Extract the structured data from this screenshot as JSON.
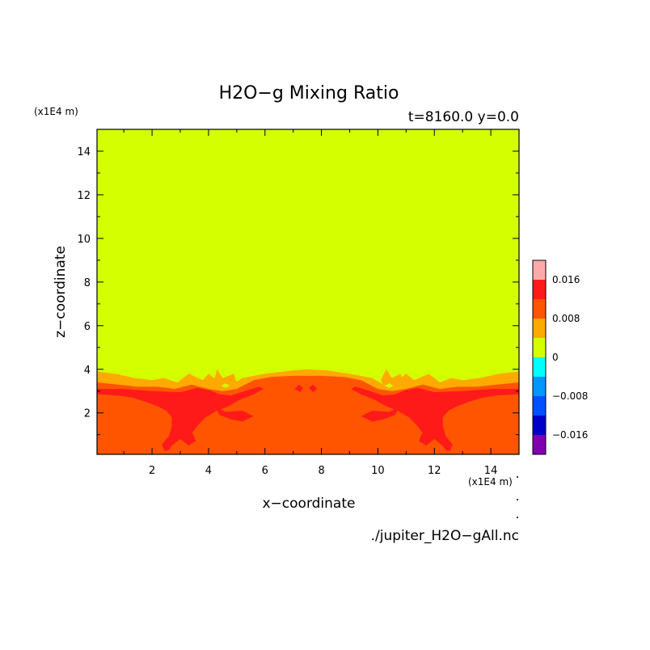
{
  "chart_data": {
    "type": "heatmap",
    "title": "H2O−g Mixing Ratio",
    "subtitle": "t=8160.0  y=0.0",
    "xlabel": "x−coordinate",
    "ylabel": "z−coordinate",
    "x_unit": "(x1E4 m)",
    "y_unit": "(x1E4 m)",
    "xlim": [
      0.05,
      15.0
    ],
    "ylim": [
      0.1,
      15.0
    ],
    "x_ticks": [
      2,
      4,
      6,
      8,
      10,
      12,
      14
    ],
    "y_ticks": [
      2,
      4,
      6,
      8,
      10,
      12,
      14
    ],
    "x_tick_labels": [
      "2",
      "4",
      "6",
      "8",
      "10",
      "12",
      "14"
    ],
    "y_tick_labels": [
      "2",
      "4",
      "6",
      "8",
      "10",
      "12",
      "14"
    ],
    "colorbar": {
      "levels": [
        -0.02,
        -0.016,
        -0.012,
        -0.008,
        -0.004,
        0,
        0.004,
        0.008,
        0.012,
        0.016,
        0.02
      ],
      "colors": [
        "#8000b0",
        "#0000c8",
        "#0050ff",
        "#0096ff",
        "#00ffff",
        "#d4ff00",
        "#ffaa00",
        "#ff5500",
        "#ff1a1a",
        "#ffaaaa"
      ],
      "tick_labels": [
        {
          "value": 0.016,
          "label": "0.016"
        },
        {
          "value": 0.008,
          "label": "0.008"
        },
        {
          "value": 0,
          "label": "0"
        },
        {
          "value": -0.008,
          "label": "−0.008"
        },
        {
          "value": -0.016,
          "label": "−0.016"
        }
      ]
    },
    "background_value": 0.002,
    "regions": [
      {
        "name": "moist-upper-band",
        "value": 0.006,
        "points": [
          [
            0.05,
            3.9
          ],
          [
            0.7,
            3.8
          ],
          [
            1.4,
            3.6
          ],
          [
            2.0,
            3.5
          ],
          [
            2.4,
            3.6
          ],
          [
            2.9,
            3.4
          ],
          [
            3.3,
            3.8
          ],
          [
            3.8,
            3.5
          ],
          [
            4.0,
            3.8
          ],
          [
            4.4,
            3.4
          ],
          [
            4.8,
            3.3
          ],
          [
            5.2,
            3.6
          ],
          [
            6.0,
            3.8
          ],
          [
            7.0,
            3.95
          ],
          [
            7.5,
            4.0
          ],
          [
            8.2,
            3.95
          ],
          [
            9.0,
            3.8
          ],
          [
            9.8,
            3.6
          ],
          [
            10.2,
            3.3
          ],
          [
            10.6,
            3.4
          ],
          [
            11.0,
            3.8
          ],
          [
            11.3,
            3.5
          ],
          [
            11.8,
            3.8
          ],
          [
            12.2,
            3.4
          ],
          [
            12.6,
            3.6
          ],
          [
            13.0,
            3.5
          ],
          [
            13.6,
            3.6
          ],
          [
            14.3,
            3.8
          ],
          [
            15.0,
            3.9
          ],
          [
            15.0,
            0.1
          ],
          [
            0.05,
            0.1
          ]
        ]
      },
      {
        "name": "moist-plume-left",
        "value": 0.006,
        "points": [
          [
            4.2,
            3.5
          ],
          [
            4.3,
            4.0
          ],
          [
            4.5,
            3.6
          ],
          [
            4.9,
            3.8
          ],
          [
            5.0,
            3.4
          ],
          [
            4.8,
            3.1
          ],
          [
            4.5,
            3.0
          ]
        ]
      },
      {
        "name": "moist-plume-right",
        "value": 0.006,
        "points": [
          [
            10.1,
            3.5
          ],
          [
            10.3,
            4.0
          ],
          [
            10.5,
            3.6
          ],
          [
            10.8,
            3.8
          ],
          [
            10.9,
            3.4
          ],
          [
            10.6,
            3.1
          ],
          [
            10.3,
            3.0
          ]
        ]
      },
      {
        "name": "dense-layer",
        "value": 0.01,
        "points": [
          [
            0.05,
            3.4
          ],
          [
            0.8,
            3.3
          ],
          [
            1.5,
            3.2
          ],
          [
            2.2,
            3.2
          ],
          [
            2.8,
            3.1
          ],
          [
            3.4,
            3.3
          ],
          [
            4.0,
            3.1
          ],
          [
            4.5,
            3.0
          ],
          [
            5.0,
            3.1
          ],
          [
            5.6,
            3.5
          ],
          [
            6.2,
            3.65
          ],
          [
            7.0,
            3.7
          ],
          [
            8.0,
            3.7
          ],
          [
            8.8,
            3.65
          ],
          [
            9.4,
            3.5
          ],
          [
            10.0,
            3.1
          ],
          [
            10.5,
            3.0
          ],
          [
            11.0,
            3.1
          ],
          [
            11.6,
            3.3
          ],
          [
            12.2,
            3.1
          ],
          [
            12.8,
            3.2
          ],
          [
            13.5,
            3.2
          ],
          [
            14.2,
            3.3
          ],
          [
            15.0,
            3.4
          ],
          [
            15.0,
            0.1
          ],
          [
            0.05,
            0.1
          ]
        ]
      },
      {
        "name": "peak-band-left",
        "value": 0.014,
        "points": [
          [
            0.05,
            3.1
          ],
          [
            1.0,
            3.1
          ],
          [
            2.0,
            3.0
          ],
          [
            3.0,
            2.95
          ],
          [
            3.6,
            3.15
          ],
          [
            4.0,
            3.05
          ],
          [
            4.4,
            2.85
          ],
          [
            4.8,
            2.8
          ],
          [
            5.4,
            3.05
          ],
          [
            5.8,
            3.2
          ],
          [
            5.95,
            3.1
          ],
          [
            5.6,
            2.85
          ],
          [
            5.1,
            2.6
          ],
          [
            4.7,
            2.3
          ],
          [
            4.3,
            2.1
          ],
          [
            3.9,
            1.8
          ],
          [
            3.6,
            1.4
          ],
          [
            3.4,
            1.05
          ],
          [
            3.5,
            0.7
          ],
          [
            3.3,
            0.5
          ],
          [
            3.0,
            0.8
          ],
          [
            2.7,
            0.5
          ],
          [
            2.6,
            0.3
          ],
          [
            2.45,
            0.25
          ],
          [
            2.35,
            0.55
          ],
          [
            2.6,
            0.95
          ],
          [
            2.7,
            1.4
          ],
          [
            2.7,
            1.8
          ],
          [
            2.5,
            2.1
          ],
          [
            2.2,
            2.3
          ],
          [
            1.8,
            2.5
          ],
          [
            1.3,
            2.7
          ],
          [
            0.8,
            2.8
          ],
          [
            0.05,
            2.85
          ]
        ]
      },
      {
        "name": "peak-band-right",
        "value": 0.014,
        "points": [
          [
            15.0,
            3.1
          ],
          [
            14.0,
            3.1
          ],
          [
            13.0,
            3.0
          ],
          [
            12.0,
            2.95
          ],
          [
            11.4,
            3.15
          ],
          [
            11.0,
            3.05
          ],
          [
            10.6,
            2.85
          ],
          [
            10.2,
            2.8
          ],
          [
            9.6,
            3.05
          ],
          [
            9.2,
            3.2
          ],
          [
            9.05,
            3.1
          ],
          [
            9.4,
            2.85
          ],
          [
            9.9,
            2.6
          ],
          [
            10.3,
            2.3
          ],
          [
            10.7,
            2.1
          ],
          [
            11.1,
            1.8
          ],
          [
            11.4,
            1.4
          ],
          [
            11.6,
            1.05
          ],
          [
            11.5,
            0.7
          ],
          [
            11.7,
            0.5
          ],
          [
            12.0,
            0.8
          ],
          [
            12.3,
            0.5
          ],
          [
            12.4,
            0.3
          ],
          [
            12.55,
            0.25
          ],
          [
            12.65,
            0.55
          ],
          [
            12.4,
            0.95
          ],
          [
            12.3,
            1.4
          ],
          [
            12.3,
            1.8
          ],
          [
            12.5,
            2.1
          ],
          [
            12.8,
            2.3
          ],
          [
            13.2,
            2.5
          ],
          [
            13.7,
            2.7
          ],
          [
            14.2,
            2.8
          ],
          [
            15.0,
            2.85
          ]
        ]
      },
      {
        "name": "peak-branch-left",
        "value": 0.014,
        "points": [
          [
            4.2,
            2.3
          ],
          [
            4.6,
            2.05
          ],
          [
            5.2,
            2.1
          ],
          [
            5.6,
            1.85
          ],
          [
            5.2,
            1.6
          ],
          [
            4.8,
            1.7
          ],
          [
            4.4,
            1.9
          ]
        ]
      },
      {
        "name": "peak-branch-right",
        "value": 0.014,
        "points": [
          [
            10.8,
            2.3
          ],
          [
            10.4,
            2.05
          ],
          [
            9.8,
            2.1
          ],
          [
            9.4,
            1.85
          ],
          [
            9.8,
            1.6
          ],
          [
            10.2,
            1.7
          ],
          [
            10.6,
            1.9
          ]
        ]
      },
      {
        "name": "peak-spot-left",
        "value": 0.014,
        "points": [
          [
            3.15,
            0.95
          ],
          [
            3.45,
            1.05
          ],
          [
            3.55,
            0.7
          ],
          [
            3.3,
            0.55
          ],
          [
            3.1,
            0.7
          ]
        ]
      },
      {
        "name": "peak-spot-right",
        "value": 0.014,
        "points": [
          [
            11.85,
            0.95
          ],
          [
            11.55,
            1.05
          ],
          [
            11.45,
            0.7
          ],
          [
            11.7,
            0.55
          ],
          [
            11.9,
            0.7
          ]
        ]
      },
      {
        "name": "peak-center-a",
        "value": 0.014,
        "points": [
          [
            7.05,
            3.1
          ],
          [
            7.2,
            3.3
          ],
          [
            7.35,
            3.15
          ],
          [
            7.25,
            2.95
          ]
        ]
      },
      {
        "name": "peak-center-b",
        "value": 0.014,
        "points": [
          [
            7.55,
            3.15
          ],
          [
            7.7,
            3.3
          ],
          [
            7.85,
            3.1
          ],
          [
            7.7,
            2.95
          ]
        ]
      },
      {
        "name": "dry-spot-left",
        "value": 0.002,
        "points": [
          [
            4.45,
            3.25
          ],
          [
            4.6,
            3.35
          ],
          [
            4.75,
            3.25
          ],
          [
            4.6,
            3.15
          ]
        ]
      },
      {
        "name": "dry-spot-right",
        "value": 0.002,
        "points": [
          [
            10.25,
            3.25
          ],
          [
            10.4,
            3.35
          ],
          [
            10.55,
            3.25
          ],
          [
            10.4,
            3.15
          ]
        ]
      }
    ],
    "source_file": "./jupiter_H2O−gAll.nc"
  }
}
